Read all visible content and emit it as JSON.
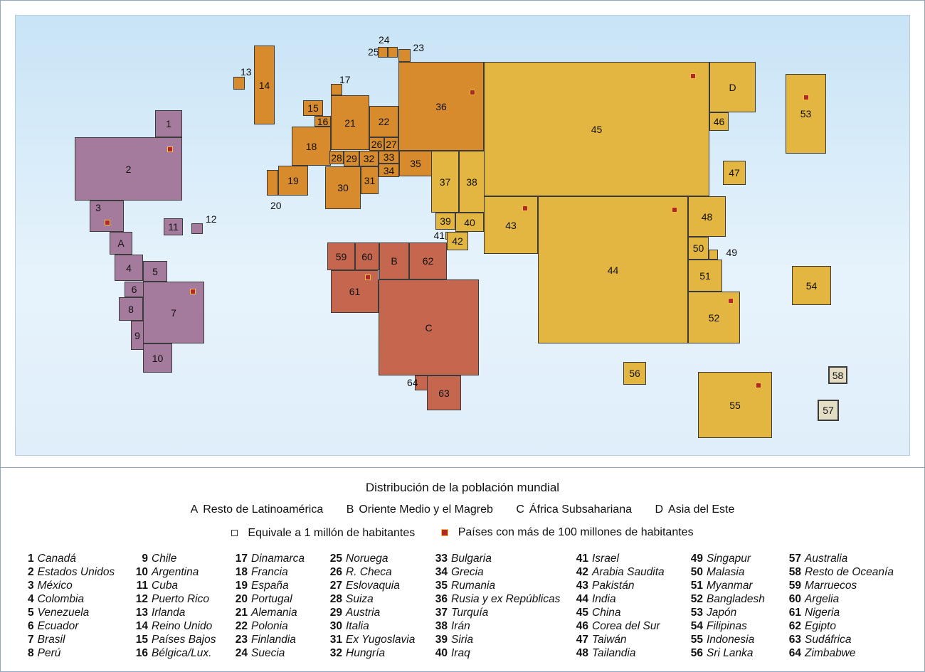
{
  "map": {
    "region_codes": {
      "latam": "A",
      "middle_east": "B",
      "africa": "C",
      "east_asia": "D"
    },
    "colors": {
      "latin_america": "#a47a9d",
      "europe": "#d88b2c",
      "africa_middle_east": "#c5674f",
      "asia_oceania": "#e2b641",
      "oceania_rest": "#e3ddc3",
      "ocean": "#d6ebf9",
      "marker_fill": "#b3262c",
      "marker_border": "#f2c33f"
    },
    "countries": {
      "1": "1",
      "2": "2",
      "3": "3",
      "4": "4",
      "5": "5",
      "6": "6",
      "7": "7",
      "8": "8",
      "9": "9",
      "10": "10",
      "11": "11",
      "12": "12",
      "13": "13",
      "14": "14",
      "15": "15",
      "16": "16",
      "17": "17",
      "18": "18",
      "19": "19",
      "20": "20",
      "21": "21",
      "22": "22",
      "23": "23",
      "24": "24",
      "25": "25",
      "26": "26",
      "27": "27",
      "28": "28",
      "29": "29",
      "30": "30",
      "31": "31",
      "32": "32",
      "33": "33",
      "34": "34",
      "35": "35",
      "36": "36",
      "37": "37",
      "38": "38",
      "39": "39",
      "40": "40",
      "41": "41",
      "42": "42",
      "43": "43",
      "44": "44",
      "45": "45",
      "46": "46",
      "47": "47",
      "48": "48",
      "49": "49",
      "50": "50",
      "51": "51",
      "52": "52",
      "53": "53",
      "54": "54",
      "55": "55",
      "56": "56",
      "57": "57",
      "58": "58",
      "59": "59",
      "60": "60",
      "61": "61",
      "62": "62",
      "63": "63",
      "64": "64"
    }
  },
  "legend": {
    "title": "Distribución de la población mundial",
    "regions": [
      {
        "code": "A",
        "label": "Resto de Latinoamérica"
      },
      {
        "code": "B",
        "label": "Oriente Medio y el Magreb"
      },
      {
        "code": "C",
        "label": "África Subsahariana"
      },
      {
        "code": "D",
        "label": "Asia del Este"
      }
    ],
    "unit_label": "Equivale a 1 millón de habitantes",
    "over100_label": "Países con más de 100 millones de habitantes",
    "columns": [
      [
        [
          "1",
          "Canadá"
        ],
        [
          "2",
          "Estados Unidos"
        ],
        [
          "3",
          "México"
        ],
        [
          "4",
          "Colombia"
        ],
        [
          "5",
          "Venezuela"
        ],
        [
          "6",
          "Ecuador"
        ],
        [
          "7",
          "Brasil"
        ],
        [
          "8",
          "Perú"
        ]
      ],
      [
        [
          "9",
          "Chile"
        ],
        [
          "10",
          "Argentina"
        ],
        [
          "11",
          "Cuba"
        ],
        [
          "12",
          "Puerto Rico"
        ],
        [
          "13",
          "Irlanda"
        ],
        [
          "14",
          "Reino Unido"
        ],
        [
          "15",
          "Países Bajos"
        ],
        [
          "16",
          "Bélgica/Lux."
        ]
      ],
      [
        [
          "17",
          "Dinamarca"
        ],
        [
          "18",
          "Francia"
        ],
        [
          "19",
          "España"
        ],
        [
          "20",
          "Portugal"
        ],
        [
          "21",
          "Alemania"
        ],
        [
          "22",
          "Polonia"
        ],
        [
          "23",
          "Finlandia"
        ],
        [
          "24",
          "Suecia"
        ]
      ],
      [
        [
          "25",
          "Noruega"
        ],
        [
          "26",
          "R. Checa"
        ],
        [
          "27",
          "Eslovaquia"
        ],
        [
          "28",
          "Suiza"
        ],
        [
          "29",
          "Austria"
        ],
        [
          "30",
          "Italia"
        ],
        [
          "31",
          "Ex Yugoslavia"
        ],
        [
          "32",
          "Hungría"
        ]
      ],
      [
        [
          "33",
          "Bulgaria"
        ],
        [
          "34",
          "Grecia"
        ],
        [
          "35",
          "Rumania"
        ],
        [
          "36",
          "Rusia y ex Repúblicas"
        ],
        [
          "37",
          "Turquía"
        ],
        [
          "38",
          "Irán"
        ],
        [
          "39",
          "Siria"
        ],
        [
          "40",
          "Iraq"
        ]
      ],
      [
        [
          "41",
          "Israel"
        ],
        [
          "42",
          "Arabia Saudita"
        ],
        [
          "43",
          "Pakistán"
        ],
        [
          "44",
          "India"
        ],
        [
          "45",
          "China"
        ],
        [
          "46",
          "Corea del Sur"
        ],
        [
          "47",
          "Taiwán"
        ],
        [
          "48",
          "Tailandia"
        ]
      ],
      [
        [
          "49",
          "Singapur"
        ],
        [
          "50",
          "Malasia"
        ],
        [
          "51",
          "Myanmar"
        ],
        [
          "52",
          "Bangladesh"
        ],
        [
          "53",
          "Japón"
        ],
        [
          "54",
          "Filipinas"
        ],
        [
          "55",
          "Indonesia"
        ],
        [
          "56",
          "Sri Lanka"
        ]
      ],
      [
        [
          "57",
          "Australia"
        ],
        [
          "58",
          "Resto de Oceanía"
        ],
        [
          "59",
          "Marruecos"
        ],
        [
          "60",
          "Argelia"
        ],
        [
          "61",
          "Nigeria"
        ],
        [
          "62",
          "Egipto"
        ],
        [
          "63",
          "Sudáfrica"
        ],
        [
          "64",
          "Zimbabwe"
        ]
      ]
    ]
  }
}
